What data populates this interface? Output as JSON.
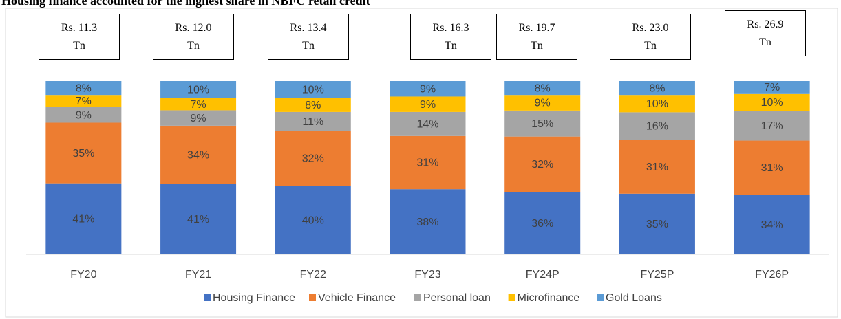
{
  "chart_data": {
    "type": "stacked_percent_bar",
    "title": "Housing finance accounted for the highest share in NBFC retail credit",
    "categories": [
      "FY20",
      "FY21",
      "FY22",
      "FY23",
      "FY24P",
      "FY25P",
      "FY26P"
    ],
    "annotations": [
      "Rs. 11.3 Tn",
      "Rs. 12.0 Tn",
      "Rs. 13.4 Tn",
      "Rs. 16.3 Tn",
      "Rs. 19.7 Tn",
      "Rs. 23.0 Tn",
      "Rs. 26.9 Tn"
    ],
    "series": [
      {
        "name": "Housing Finance",
        "color": "#4472c4",
        "values": [
          41,
          41,
          40,
          38,
          36,
          35,
          34
        ],
        "value_labels": [
          "41%",
          "41%",
          "40%",
          "38%",
          "36%",
          "35%",
          "34%"
        ]
      },
      {
        "name": "Vehicle Finance",
        "color": "#ed7d31",
        "values": [
          35,
          34,
          32,
          31,
          32,
          31,
          31
        ],
        "value_labels": [
          "35%",
          "34%",
          "32%",
          "31%",
          "32%",
          "31%",
          "31%"
        ]
      },
      {
        "name": "Personal loan",
        "color": "#a5a5a5",
        "values": [
          9,
          9,
          11,
          14,
          15,
          16,
          17
        ],
        "value_labels": [
          "9%",
          "9%",
          "11%",
          "14%",
          "15%",
          "16%",
          "17%"
        ]
      },
      {
        "name": "Microfinance",
        "color": "#ffc000",
        "values": [
          7,
          7,
          8,
          9,
          9,
          10,
          10
        ],
        "value_labels": [
          "7%",
          "7%",
          "8%",
          "9%",
          "9%",
          "10%",
          "10%"
        ]
      },
      {
        "name": "Gold Loans",
        "color": "#5b9bd5",
        "values": [
          8,
          10,
          10,
          9,
          8,
          8,
          7
        ],
        "value_labels": [
          "8%",
          "10%",
          "10%",
          "9%",
          "8%",
          "8%",
          "7%"
        ]
      }
    ],
    "legend": "bottom"
  }
}
